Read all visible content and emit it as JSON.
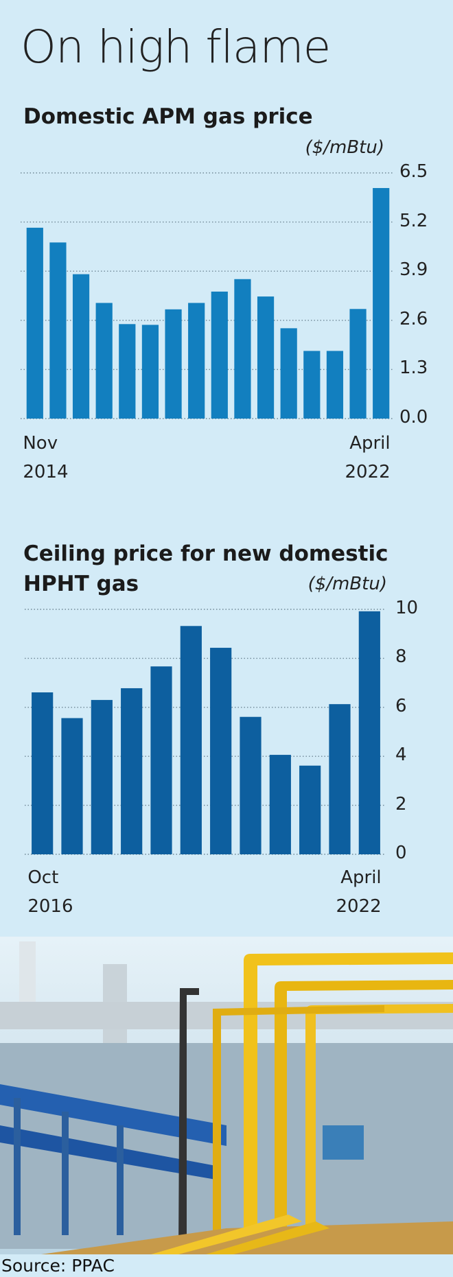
{
  "title": "On high flame",
  "source": "Source: PPAC",
  "chart_data": [
    {
      "type": "bar",
      "title": "Domestic APM gas price",
      "unit": "($/mBtu)",
      "categories": [
        "Nov 2014",
        null,
        null,
        null,
        null,
        null,
        null,
        null,
        null,
        null,
        null,
        null,
        null,
        null,
        null,
        "April 2022"
      ],
      "values": [
        5.05,
        4.66,
        3.82,
        3.06,
        2.5,
        2.48,
        2.89,
        3.06,
        3.36,
        3.69,
        3.23,
        2.39,
        1.79,
        1.79,
        2.9,
        6.1
      ],
      "color": "#127fbf",
      "ylim": [
        0,
        6.5
      ],
      "yticks": [
        {
          "value": 0,
          "label": "0.0"
        },
        1.3,
        2.6,
        3.9,
        5.2,
        6.5
      ],
      "grid": true
    },
    {
      "type": "bar",
      "title": "Ceiling price for new domestic HPHT gas",
      "unit": "($/mBtu)",
      "categories": [
        "Oct 2016",
        null,
        null,
        null,
        null,
        null,
        null,
        null,
        null,
        null,
        null,
        "April 2022"
      ],
      "values": [
        6.61,
        5.56,
        6.3,
        6.78,
        7.67,
        9.32,
        8.43,
        5.61,
        4.06,
        3.62,
        6.13,
        9.92
      ],
      "color": "#0d5f9f",
      "ylim": [
        0,
        10
      ],
      "yticks": [
        0,
        2,
        4,
        6,
        8,
        10
      ],
      "grid": true
    }
  ]
}
